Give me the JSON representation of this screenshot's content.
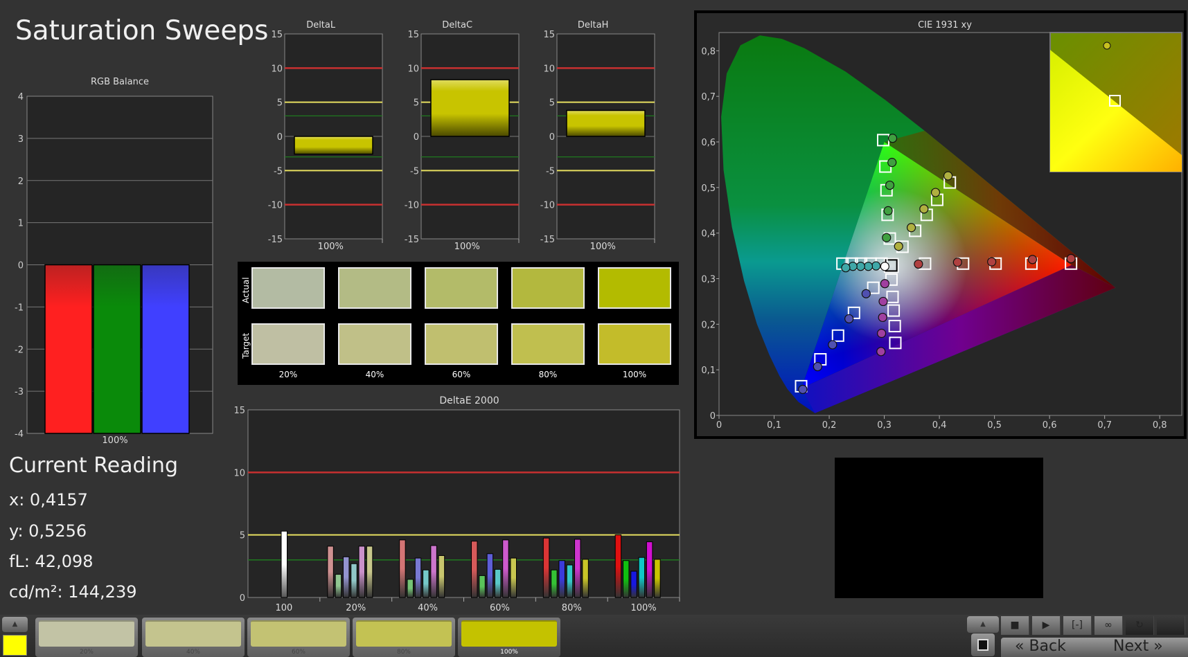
{
  "app_title": "Saturation Sweeps",
  "colors": {
    "background": "#333333",
    "plot_bg": "#252525",
    "red_line": "#c83030",
    "yellow_line": "#e8e060",
    "green_line": "#1f7a1f",
    "bar_yellow": "#c8c400"
  },
  "rgb_balance": {
    "title": "RGB Balance",
    "type": "bar",
    "ylim": [
      -4,
      4
    ],
    "yticks": [
      "4",
      "3",
      "2",
      "1",
      "0",
      "-1",
      "-2",
      "-3",
      "-4"
    ],
    "category": "100%",
    "series": [
      {
        "color": "#ff2020",
        "value": -4
      },
      {
        "color": "#0a8a0a",
        "value": -4
      },
      {
        "color": "#4040ff",
        "value": -4
      }
    ]
  },
  "delta_charts": [
    {
      "title": "DeltaL",
      "category": "100%",
      "value": -2.6
    },
    {
      "title": "DeltaC",
      "category": "100%",
      "value": 8.3
    },
    {
      "title": "DeltaH",
      "category": "100%",
      "value": 3.8
    }
  ],
  "delta_axis": {
    "ylim": [
      -15,
      15
    ],
    "yticks": [
      "15",
      "10",
      "5",
      "0",
      "-5",
      "-10",
      "-15"
    ],
    "thresholds": {
      "red": 10,
      "yellow": 5,
      "green": 3
    }
  },
  "swatches": {
    "actual_label": "Actual",
    "target_label": "Target",
    "items": [
      {
        "label": "20%",
        "actual": "#b3bba3",
        "target": "#bfbfa3"
      },
      {
        "label": "40%",
        "actual": "#b3bb85",
        "target": "#c0c088"
      },
      {
        "label": "60%",
        "actual": "#b3bb69",
        "target": "#c0bf6f"
      },
      {
        "label": "80%",
        "actual": "#b3b83e",
        "target": "#c0bf4f"
      },
      {
        "label": "100%",
        "actual": "#b3bb00",
        "target": "#c3bc2a"
      }
    ]
  },
  "chart_data": [
    {
      "type": "bar",
      "title": "DeltaE 2000",
      "ylim": [
        0,
        15
      ],
      "yticks": [
        "15",
        "10",
        "5",
        "0"
      ],
      "thresholds": {
        "red": 10,
        "yellow": 5,
        "green": 3
      },
      "categories": [
        "100",
        "20%",
        "40%",
        "60%",
        "80%",
        "100%"
      ],
      "series_colors": {
        "White": "#ffffff",
        "Red": "#e01010",
        "Green": "#10c010",
        "Blue": "#1818e0",
        "Cyan": "#10c8c8",
        "Magenta": "#d010d0",
        "Yellow": "#c8c400"
      },
      "groups": [
        {
          "category": "100",
          "bars": [
            {
              "color": "White",
              "value": 5.3
            }
          ]
        },
        {
          "category": "20%",
          "bars": [
            {
              "color": "Red",
              "value": 4.1
            },
            {
              "color": "Green",
              "value": 1.85
            },
            {
              "color": "Blue",
              "value": 3.25
            },
            {
              "color": "Cyan",
              "value": 2.7
            },
            {
              "color": "Magenta",
              "value": 4.1
            },
            {
              "color": "Yellow",
              "value": 4.1
            }
          ]
        },
        {
          "category": "40%",
          "bars": [
            {
              "color": "Red",
              "value": 4.6
            },
            {
              "color": "Green",
              "value": 1.45
            },
            {
              "color": "Blue",
              "value": 3.15
            },
            {
              "color": "Cyan",
              "value": 2.2
            },
            {
              "color": "Magenta",
              "value": 4.15
            },
            {
              "color": "Yellow",
              "value": 3.35
            }
          ]
        },
        {
          "category": "60%",
          "bars": [
            {
              "color": "Red",
              "value": 4.5
            },
            {
              "color": "Green",
              "value": 1.75
            },
            {
              "color": "Blue",
              "value": 3.5
            },
            {
              "color": "Cyan",
              "value": 2.25
            },
            {
              "color": "Magenta",
              "value": 4.6
            },
            {
              "color": "Yellow",
              "value": 3.15
            }
          ]
        },
        {
          "category": "80%",
          "bars": [
            {
              "color": "Red",
              "value": 4.75
            },
            {
              "color": "Green",
              "value": 2.2
            },
            {
              "color": "Blue",
              "value": 2.95
            },
            {
              "color": "Cyan",
              "value": 2.6
            },
            {
              "color": "Magenta",
              "value": 4.65
            },
            {
              "color": "Yellow",
              "value": 3.05
            }
          ]
        },
        {
          "category": "100%",
          "bars": [
            {
              "color": "Red",
              "value": 5.0
            },
            {
              "color": "Green",
              "value": 2.95
            },
            {
              "color": "Blue",
              "value": 2.1
            },
            {
              "color": "Cyan",
              "value": 3.2
            },
            {
              "color": "Magenta",
              "value": 4.45
            },
            {
              "color": "Yellow",
              "value": 3.05
            }
          ]
        }
      ]
    },
    {
      "type": "scatter",
      "title": "CIE 1931 xy",
      "xlim": [
        0,
        0.84
      ],
      "ylim": [
        0,
        0.84
      ],
      "xticks": [
        "0",
        "0,1",
        "0,2",
        "0,3",
        "0,4",
        "0,5",
        "0,6",
        "0,7",
        "0,8"
      ],
      "yticks": [
        "0",
        "0,1",
        "0,2",
        "0,3",
        "0,4",
        "0,5",
        "0,6",
        "0,7",
        "0,8"
      ],
      "gamut": {
        "red": [
          0.64,
          0.33
        ],
        "green": [
          0.3,
          0.6
        ],
        "blue": [
          0.15,
          0.06
        ]
      },
      "targets": [
        {
          "color": "White",
          "points": [
            [
              0.3127,
              0.329
            ]
          ]
        },
        {
          "color": "Red",
          "points": [
            [
              0.374,
              0.333
            ],
            [
              0.443,
              0.333
            ],
            [
              0.502,
              0.333
            ],
            [
              0.567,
              0.333
            ],
            [
              0.639,
              0.333
            ]
          ]
        },
        {
          "color": "Green",
          "points": [
            [
              0.31,
              0.388
            ],
            [
              0.306,
              0.44
            ],
            [
              0.304,
              0.494
            ],
            [
              0.302,
              0.546
            ],
            [
              0.298,
              0.604
            ]
          ]
        },
        {
          "color": "Blue",
          "points": [
            [
              0.28,
              0.28
            ],
            [
              0.245,
              0.225
            ],
            [
              0.216,
              0.175
            ],
            [
              0.184,
              0.123
            ],
            [
              0.149,
              0.064
            ]
          ]
        },
        {
          "color": "Cyan",
          "points": [
            [
              0.295,
              0.333
            ],
            [
              0.275,
              0.333
            ],
            [
              0.258,
              0.333
            ],
            [
              0.241,
              0.333
            ],
            [
              0.224,
              0.333
            ]
          ]
        },
        {
          "color": "Magenta",
          "points": [
            [
              0.313,
              0.298
            ],
            [
              0.315,
              0.26
            ],
            [
              0.317,
              0.23
            ],
            [
              0.319,
              0.196
            ],
            [
              0.32,
              0.159
            ]
          ]
        },
        {
          "color": "Yellow",
          "points": [
            [
              0.333,
              0.37
            ],
            [
              0.356,
              0.405
            ],
            [
              0.377,
              0.44
            ],
            [
              0.396,
              0.473
            ],
            [
              0.419,
              0.511
            ]
          ]
        }
      ],
      "measured": [
        {
          "color": "White",
          "fill": "#ffffff",
          "points": [
            [
              0.301,
              0.327
            ]
          ]
        },
        {
          "color": "Red",
          "fill": "#b04040",
          "points": [
            [
              0.362,
              0.332
            ],
            [
              0.433,
              0.336
            ],
            [
              0.495,
              0.337
            ],
            [
              0.569,
              0.342
            ],
            [
              0.639,
              0.344
            ]
          ]
        },
        {
          "color": "Green",
          "fill": "#40a040",
          "points": [
            [
              0.304,
              0.39
            ],
            [
              0.307,
              0.449
            ],
            [
              0.31,
              0.505
            ],
            [
              0.314,
              0.555
            ],
            [
              0.315,
              0.608
            ]
          ]
        },
        {
          "color": "Blue",
          "fill": "#5050b0",
          "points": [
            [
              0.267,
              0.267
            ],
            [
              0.236,
              0.212
            ],
            [
              0.206,
              0.155
            ],
            [
              0.179,
              0.107
            ],
            [
              0.152,
              0.057
            ]
          ]
        },
        {
          "color": "Cyan",
          "fill": "#40a8a8",
          "points": [
            [
              0.285,
              0.328
            ],
            [
              0.271,
              0.327
            ],
            [
              0.257,
              0.327
            ],
            [
              0.243,
              0.327
            ],
            [
              0.23,
              0.324
            ]
          ]
        },
        {
          "color": "Magenta",
          "fill": "#a040a0",
          "points": [
            [
              0.301,
              0.289
            ],
            [
              0.298,
              0.25
            ],
            [
              0.297,
              0.215
            ],
            [
              0.295,
              0.18
            ],
            [
              0.294,
              0.14
            ]
          ]
        },
        {
          "color": "Yellow",
          "fill": "#b0b040",
          "points": [
            [
              0.326,
              0.371
            ],
            [
              0.349,
              0.412
            ],
            [
              0.372,
              0.453
            ],
            [
              0.393,
              0.489
            ],
            [
              0.4157,
              0.5256
            ]
          ]
        }
      ]
    }
  ],
  "current_reading": {
    "title": "Current Reading",
    "x": "x: 0,4157",
    "y": "y: 0,5256",
    "fl": "fL: 42,098",
    "cdm2": "cd/m²: 144,239"
  },
  "bottom_bar": {
    "current_color": "#ffff00",
    "tiles": [
      {
        "label": "20%",
        "color": "#c2c3a5"
      },
      {
        "label": "40%",
        "color": "#c4c48e"
      },
      {
        "label": "60%",
        "color": "#c3c273"
      },
      {
        "label": "80%",
        "color": "#c3c253"
      },
      {
        "label": "100%",
        "color": "#c4c200",
        "selected": true
      }
    ],
    "controls": [
      {
        "name": "stop",
        "glyph": "■"
      },
      {
        "name": "play",
        "glyph": "▶"
      },
      {
        "name": "fit",
        "glyph": "[-]"
      },
      {
        "name": "loop",
        "glyph": "∞"
      },
      {
        "name": "refresh",
        "glyph": "↻"
      },
      {
        "name": "blank",
        "glyph": ""
      }
    ],
    "back_label": "Back",
    "next_label": "Next",
    "back_glyph": "«",
    "next_glyph": "»",
    "up_glyph": "▲"
  }
}
